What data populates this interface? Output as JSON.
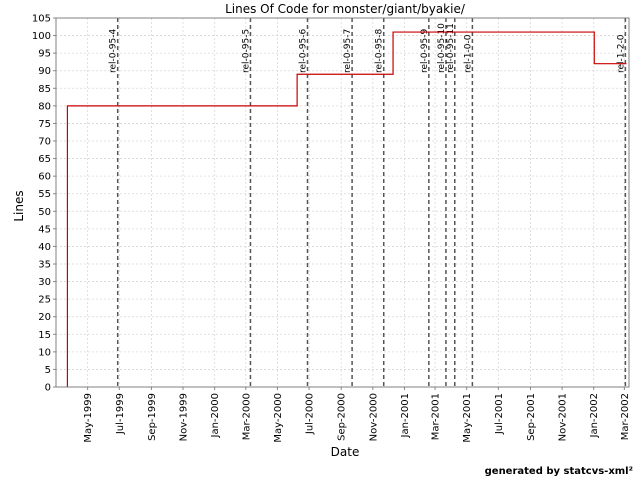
{
  "chart_data": {
    "type": "line",
    "title": "Lines Of Code for monster/giant/byakie/",
    "xlabel": "Date",
    "ylabel": "Lines",
    "ylim": [
      0,
      105
    ],
    "y_ticks": [
      0,
      5,
      10,
      15,
      20,
      25,
      30,
      35,
      40,
      45,
      50,
      55,
      60,
      65,
      70,
      75,
      80,
      85,
      90,
      95,
      100,
      105
    ],
    "xlim": [
      "1999-03-01",
      "2002-03-10"
    ],
    "x_ticks": [
      {
        "date": "1999-05-01",
        "label": "May-1999"
      },
      {
        "date": "1999-07-01",
        "label": "Jul-1999"
      },
      {
        "date": "1999-09-01",
        "label": "Sep-1999"
      },
      {
        "date": "1999-11-01",
        "label": "Nov-1999"
      },
      {
        "date": "2000-01-01",
        "label": "Jan-2000"
      },
      {
        "date": "2000-03-01",
        "label": "Mar-2000"
      },
      {
        "date": "2000-05-01",
        "label": "May-2000"
      },
      {
        "date": "2000-07-01",
        "label": "Jul-2000"
      },
      {
        "date": "2000-09-01",
        "label": "Sep-2000"
      },
      {
        "date": "2000-11-01",
        "label": "Nov-2000"
      },
      {
        "date": "2001-01-01",
        "label": "Jan-2001"
      },
      {
        "date": "2001-03-01",
        "label": "Mar-2001"
      },
      {
        "date": "2001-05-01",
        "label": "May-2001"
      },
      {
        "date": "2001-07-01",
        "label": "Jul-2001"
      },
      {
        "date": "2001-09-01",
        "label": "Sep-2001"
      },
      {
        "date": "2001-11-01",
        "label": "Nov-2001"
      },
      {
        "date": "2002-01-01",
        "label": "Jan-2002"
      },
      {
        "date": "2002-03-01",
        "label": "Mar-2002"
      }
    ],
    "grid": true,
    "series": [
      {
        "color": "#cc0000",
        "step": true,
        "points": [
          {
            "x": "1999-03-23",
            "y": 0
          },
          {
            "x": "1999-03-23",
            "y": 80
          },
          {
            "x": "2000-06-08",
            "y": 89
          },
          {
            "x": "2000-12-10",
            "y": 101
          },
          {
            "x": "2002-01-02",
            "y": 92
          },
          {
            "x": "2002-03-05",
            "y": 92
          }
        ]
      }
    ],
    "markers": [
      {
        "date": "1999-06-28",
        "label": "rel-0-95-4"
      },
      {
        "date": "2000-03-10",
        "label": "rel-0-95-5"
      },
      {
        "date": "2000-06-28",
        "label": "rel-0-95-6"
      },
      {
        "date": "2000-09-22",
        "label": "rel-0-95-7"
      },
      {
        "date": "2000-11-22",
        "label": "rel-0-95-8"
      },
      {
        "date": "2001-02-17",
        "label": "rel-0-95-9"
      },
      {
        "date": "2001-03-22",
        "label": "rel-0-95-10"
      },
      {
        "date": "2001-04-08",
        "label": "rel-0-95-11"
      },
      {
        "date": "2001-05-12",
        "label": "rel-1-0-0"
      },
      {
        "date": "2002-03-03",
        "label": "rel-1-2-0"
      }
    ]
  },
  "footer": "generated by statcvs-xml²"
}
